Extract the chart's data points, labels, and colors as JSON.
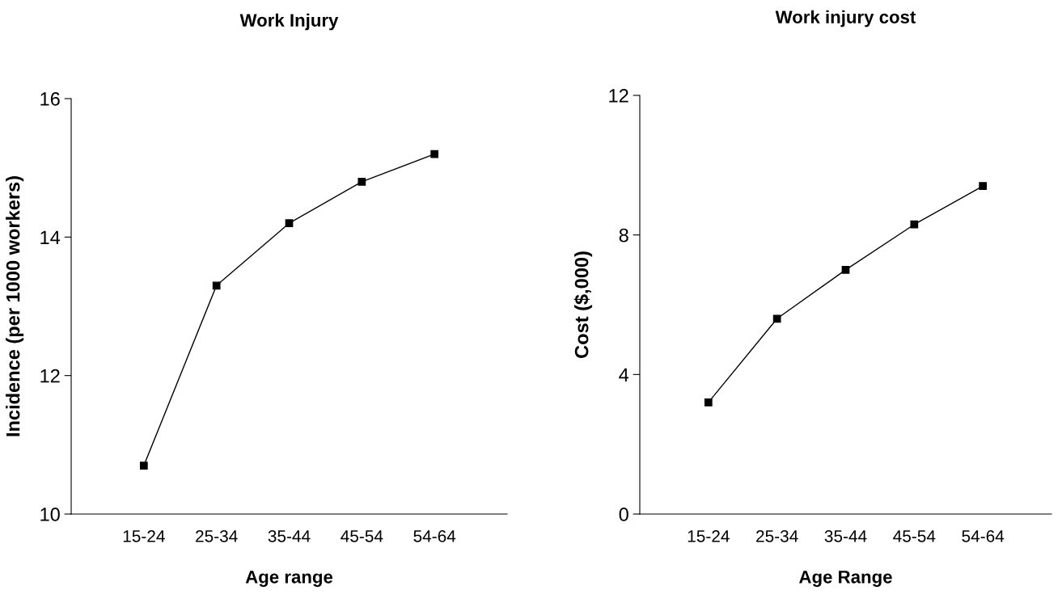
{
  "chart_data": [
    {
      "type": "line",
      "title": "Work Injury",
      "xlabel": "Age range",
      "ylabel": "Incidence (per 1000 workers)",
      "categories": [
        "15-24",
        "25-34",
        "35-44",
        "45-54",
        "54-64"
      ],
      "series": [
        {
          "color": "#000000",
          "values": [
            10.7,
            13.3,
            14.2,
            14.8,
            15.2
          ]
        }
      ],
      "ylim": [
        10,
        16
      ],
      "yticks": [
        10,
        12,
        14,
        16
      ],
      "grid": false,
      "legend": false,
      "marker": "square",
      "line_style": "solid"
    },
    {
      "type": "line",
      "title": "Work injury cost",
      "xlabel": "Age Range",
      "ylabel": "Cost ($,000)",
      "categories": [
        "15-24",
        "25-34",
        "35-44",
        "45-54",
        "54-64"
      ],
      "series": [
        {
          "color": "#000000",
          "values": [
            3.2,
            5.6,
            7.0,
            8.3,
            9.4
          ]
        }
      ],
      "ylim": [
        0,
        12
      ],
      "yticks": [
        0,
        4,
        8,
        12
      ],
      "grid": false,
      "legend": false,
      "marker": "square",
      "line_style": "solid"
    }
  ]
}
